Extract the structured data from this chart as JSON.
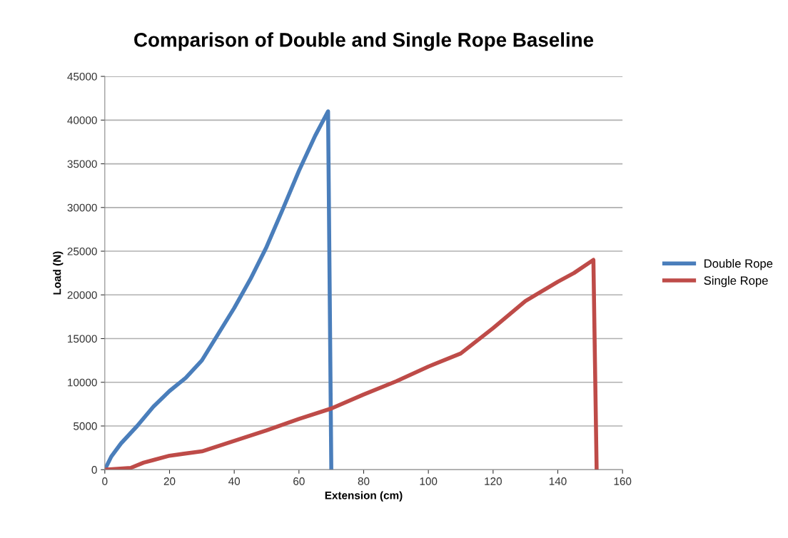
{
  "chart_data": {
    "type": "line",
    "title": "Comparison of Double and Single Rope Baseline",
    "xlabel": "Extension (cm)",
    "ylabel": "Load (N)",
    "xlim": [
      0,
      160
    ],
    "xticks": [
      0,
      20,
      40,
      60,
      80,
      100,
      120,
      140,
      160
    ],
    "ylim": [
      0,
      45000
    ],
    "yticks": [
      0,
      5000,
      10000,
      15000,
      20000,
      25000,
      30000,
      35000,
      40000,
      45000
    ],
    "grid": "y",
    "legend": "right",
    "marker": "none",
    "line_style": "solid",
    "series": [
      {
        "name": "Double Rope",
        "color": "#4a7ebb",
        "x": [
          0,
          2,
          5,
          10,
          15,
          20,
          25,
          30,
          35,
          40,
          45,
          50,
          55,
          60,
          65,
          69,
          70
        ],
        "values": [
          0,
          1500,
          3000,
          5000,
          7200,
          9000,
          10500,
          12500,
          15500,
          18500,
          21800,
          25500,
          29800,
          34200,
          38200,
          41000,
          0
        ]
      },
      {
        "name": "Single Rope",
        "color": "#be4b48",
        "x": [
          0,
          8,
          12,
          15,
          20,
          30,
          40,
          50,
          60,
          70,
          80,
          90,
          100,
          110,
          120,
          130,
          140,
          145,
          151,
          152
        ],
        "values": [
          0,
          200,
          800,
          1100,
          1600,
          2100,
          3300,
          4500,
          5800,
          7000,
          8600,
          10100,
          11800,
          13300,
          16200,
          19300,
          21500,
          22500,
          24000,
          0
        ]
      }
    ]
  }
}
